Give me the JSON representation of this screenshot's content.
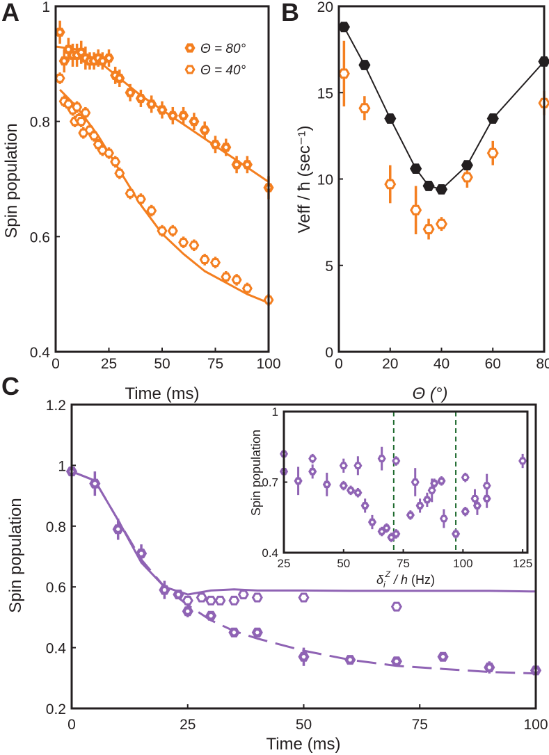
{
  "panel_labels": {
    "A": "A",
    "B": "B",
    "C": "C"
  },
  "colors": {
    "orange": "#f47f20",
    "black": "#231f20",
    "purple": "#8f63b4",
    "green_dash": "#1e6a2e"
  },
  "chart_data": [
    {
      "panel": "A",
      "type": "scatter",
      "xlabel": "Time (ms)",
      "ylabel": "Spin population",
      "xlim": [
        0,
        100
      ],
      "ylim": [
        0.4,
        1
      ],
      "xticks": [
        0,
        25,
        50,
        75,
        100
      ],
      "yticks": [
        0.4,
        0.6,
        0.8,
        1
      ],
      "ytick_labels": [
        "0.4",
        "0.6",
        "0.8",
        "1"
      ],
      "legend": {
        "position": "top-right"
      },
      "series": [
        {
          "name": "Θ = 80°",
          "color": "#f47f20",
          "marker": "filled-hexagon",
          "x": [
            2,
            4,
            6,
            8,
            10,
            12,
            14,
            16,
            18,
            20,
            22,
            25,
            28,
            30,
            35,
            40,
            45,
            50,
            55,
            60,
            65,
            70,
            75,
            80,
            85,
            90,
            100
          ],
          "y": [
            0.955,
            0.905,
            0.925,
            0.915,
            0.915,
            0.92,
            0.91,
            0.905,
            0.905,
            0.91,
            0.905,
            0.91,
            0.88,
            0.875,
            0.85,
            0.84,
            0.83,
            0.82,
            0.81,
            0.81,
            0.8,
            0.785,
            0.76,
            0.755,
            0.725,
            0.725,
            0.685
          ],
          "err": [
            0.02,
            0.02,
            0.02,
            0.02,
            0.02,
            0.02,
            0.02,
            0.015,
            0.015,
            0.015,
            0.015,
            0.015,
            0.015,
            0.015,
            0.015,
            0.015,
            0.015,
            0.015,
            0.015,
            0.015,
            0.015,
            0.015,
            0.015,
            0.015,
            0.015,
            0.015,
            0.02
          ],
          "fit": {
            "x": [
              0,
              10,
              20,
              30,
              40,
              50,
              60,
              70,
              80,
              90,
              100
            ],
            "y": [
              0.93,
              0.925,
              0.905,
              0.875,
              0.845,
              0.82,
              0.795,
              0.77,
              0.745,
              0.72,
              0.695
            ]
          }
        },
        {
          "name": "Θ = 40°",
          "color": "#f47f20",
          "marker": "open-hexagon",
          "x": [
            2,
            4,
            6,
            8,
            9,
            10,
            11,
            12,
            13,
            14,
            16,
            18,
            20,
            22,
            25,
            28,
            30,
            35,
            40,
            45,
            50,
            55,
            60,
            65,
            70,
            75,
            80,
            85,
            90,
            100
          ],
          "y": [
            0.875,
            0.835,
            0.83,
            0.82,
            0.8,
            0.825,
            0.805,
            0.8,
            0.78,
            0.815,
            0.785,
            0.775,
            0.76,
            0.75,
            0.745,
            0.73,
            0.71,
            0.675,
            0.665,
            0.645,
            0.61,
            0.61,
            0.59,
            0.585,
            0.56,
            0.555,
            0.53,
            0.525,
            0.51,
            0.49
          ],
          "err": [
            0.01,
            0.01,
            0.01,
            0.01,
            0.01,
            0.01,
            0.01,
            0.01,
            0.01,
            0.01,
            0.01,
            0.01,
            0.01,
            0.01,
            0.01,
            0.01,
            0.01,
            0.01,
            0.01,
            0.01,
            0.01,
            0.01,
            0.01,
            0.01,
            0.01,
            0.01,
            0.01,
            0.01,
            0.01,
            0.01
          ],
          "fit": {
            "x": [
              2,
              10,
              20,
              30,
              40,
              50,
              60,
              70,
              80,
              90,
              100
            ],
            "y": [
              0.855,
              0.825,
              0.775,
              0.715,
              0.655,
              0.605,
              0.57,
              0.54,
              0.52,
              0.5,
              0.485
            ]
          }
        }
      ]
    },
    {
      "panel": "B",
      "type": "scatter",
      "xlabel": "Θ (°)",
      "ylabel": "Veff / ħ (sec⁻¹)",
      "xlim": [
        0,
        80
      ],
      "ylim": [
        0,
        20
      ],
      "xticks": [
        0,
        20,
        40,
        60,
        80
      ],
      "yticks": [
        0,
        5,
        10,
        15,
        20
      ],
      "series": [
        {
          "name": "",
          "color": "#231f20",
          "marker": "filled-hexagon-line",
          "x": [
            2,
            10,
            20,
            30,
            35,
            40,
            50,
            60,
            80
          ],
          "y": [
            18.8,
            16.6,
            13.5,
            10.6,
            9.6,
            9.4,
            10.8,
            13.5,
            16.8
          ]
        },
        {
          "name": "",
          "color": "#f47f20",
          "marker": "open-hexagon",
          "x": [
            2,
            10,
            20,
            30,
            35,
            40,
            50,
            60,
            80
          ],
          "y": [
            16.1,
            14.1,
            9.7,
            8.2,
            7.1,
            7.4,
            10.1,
            11.5,
            14.4
          ],
          "err": [
            1.9,
            0.7,
            1.1,
            1.4,
            0.6,
            0.4,
            0.6,
            0.7,
            0.7
          ]
        }
      ]
    },
    {
      "panel": "C",
      "type": "scatter",
      "xlabel": "Time (ms)",
      "ylabel": "Spin population",
      "xlim": [
        0,
        100
      ],
      "ylim": [
        0.2,
        1.2
      ],
      "xticks": [
        0,
        25,
        50,
        75,
        100
      ],
      "yticks": [
        0.2,
        0.4,
        0.6,
        0.8,
        1,
        1.2
      ],
      "ytick_labels": [
        "0.2",
        "0.4",
        "0.6",
        "0.8",
        "1",
        "1.2"
      ],
      "series": [
        {
          "name": "",
          "color": "#8f63b4",
          "marker": "open-hexagon",
          "x": [
            25,
            28,
            30,
            32,
            35,
            37,
            40,
            50,
            70
          ],
          "y": [
            0.555,
            0.565,
            0.555,
            0.555,
            0.555,
            0.575,
            0.565,
            0.565,
            0.535
          ],
          "err": [
            0.01,
            0.01,
            0.01,
            0.01,
            0.01,
            0.01,
            0.01,
            0.01,
            0.01
          ],
          "fit": {
            "style": "solid",
            "x": [
              0,
              5,
              10,
              15,
              20,
              25,
              30,
              35,
              40,
              50,
              60,
              70,
              80,
              90,
              100
            ],
            "y": [
              0.98,
              0.95,
              0.82,
              0.68,
              0.6,
              0.575,
              0.588,
              0.592,
              0.588,
              0.588,
              0.587,
              0.587,
              0.587,
              0.587,
              0.585
            ]
          }
        },
        {
          "name": "",
          "color": "#8f63b4",
          "marker": "filled-hexagon",
          "x": [
            0,
            5,
            10,
            15,
            20,
            23,
            25,
            30,
            35,
            40,
            50,
            60,
            70,
            80,
            90,
            100
          ],
          "y": [
            0.98,
            0.94,
            0.79,
            0.71,
            0.59,
            0.575,
            0.52,
            0.505,
            0.45,
            0.45,
            0.37,
            0.36,
            0.355,
            0.37,
            0.335,
            0.325
          ],
          "err": [
            0.01,
            0.04,
            0.035,
            0.03,
            0.03,
            0.01,
            0.02,
            0.01,
            0.015,
            0.015,
            0.03,
            0.01,
            0.01,
            0.01,
            0.02,
            0.01
          ],
          "fit": {
            "style": "dashed",
            "x": [
              0,
              5,
              10,
              15,
              20,
              25,
              30,
              35,
              40,
              50,
              60,
              70,
              80,
              90,
              100
            ],
            "y": [
              0.98,
              0.95,
              0.82,
              0.69,
              0.6,
              0.54,
              0.49,
              0.455,
              0.43,
              0.39,
              0.36,
              0.34,
              0.33,
              0.32,
              0.315
            ]
          }
        }
      ]
    },
    {
      "panel": "C-inset",
      "type": "scatter",
      "xlabel_main": "δ",
      "xlabel_sub": "i",
      "xlabel_sup": "Z",
      "xlabel_rest": " / h",
      "xlabel_unit": " (Hz)",
      "ylabel": "Spin population",
      "xlim": [
        25,
        127
      ],
      "ylim": [
        0.4,
        1
      ],
      "xticks": [
        25,
        50,
        75,
        100,
        125
      ],
      "yticks": [
        0.4,
        0.7,
        1
      ],
      "ytick_labels": [
        "0.4",
        "0.7",
        "1"
      ],
      "vlines": [
        71,
        97
      ],
      "series": [
        {
          "name": "",
          "color": "#8f63b4",
          "marker": "filled-hexagon",
          "x": [
            25,
            31,
            37,
            43,
            50,
            53,
            56,
            59,
            62,
            66,
            68,
            70,
            72,
            78,
            82,
            85,
            88,
            91,
            97,
            101,
            106,
            110
          ],
          "y": [
            0.745,
            0.705,
            0.745,
            0.69,
            0.685,
            0.665,
            0.655,
            0.6,
            0.53,
            0.49,
            0.505,
            0.465,
            0.48,
            0.56,
            0.6,
            0.625,
            0.695,
            0.705,
            0.48,
            0.575,
            0.6,
            0.63
          ],
          "err": [
            0.03,
            0.06,
            0.03,
            0.05,
            0.02,
            0.02,
            0.02,
            0.03,
            0.03,
            0.02,
            0.02,
            0.02,
            0.02,
            0.02,
            0.03,
            0.03,
            0.02,
            0.02,
            0.02,
            0.02,
            0.04,
            0.04
          ]
        },
        {
          "name": "",
          "color": "#8f63b4",
          "marker": "open-hexagon",
          "x": [
            25,
            37,
            50,
            56,
            66,
            72,
            80,
            87,
            92,
            101,
            105,
            110,
            125
          ],
          "y": [
            0.82,
            0.8,
            0.77,
            0.77,
            0.8,
            0.79,
            0.7,
            0.665,
            0.545,
            0.72,
            0.63,
            0.685,
            0.79
          ],
          "err": [
            0.04,
            0.02,
            0.03,
            0.04,
            0.05,
            0.02,
            0.06,
            0.05,
            0.04,
            0.02,
            0.04,
            0.05,
            0.03
          ]
        }
      ]
    }
  ]
}
